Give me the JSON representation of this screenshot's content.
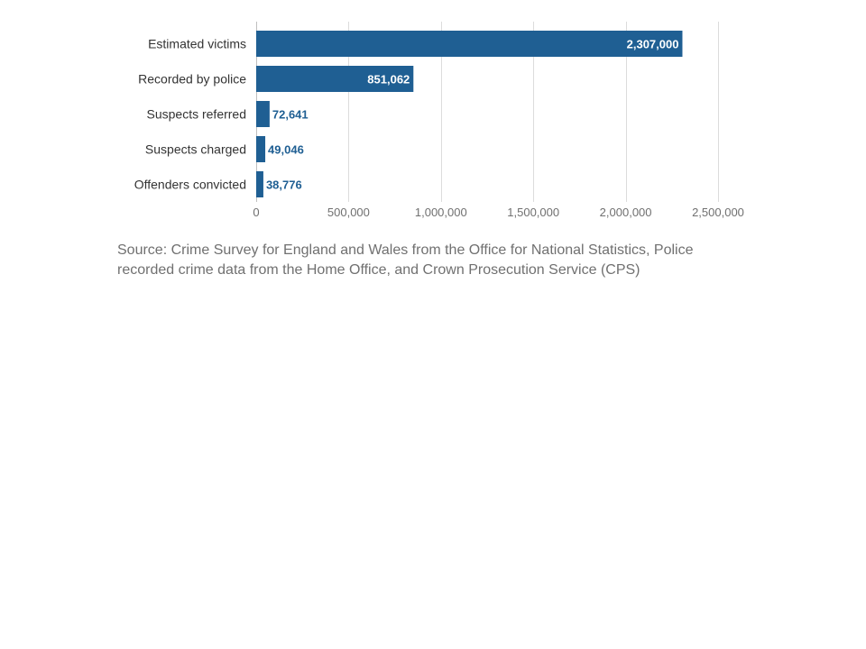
{
  "chart_data": {
    "type": "bar",
    "orientation": "horizontal",
    "categories": [
      "Estimated victims",
      "Recorded by police",
      "Suspects referred",
      "Suspects charged",
      "Offenders convicted"
    ],
    "values": [
      2307000,
      851062,
      72641,
      49046,
      38776
    ],
    "value_labels": [
      "2,307,000",
      "851,062",
      "72,641",
      "49,046",
      "38,776"
    ],
    "xlim": [
      0,
      2500000
    ],
    "x_ticks": [
      0,
      500000,
      1000000,
      1500000,
      2000000,
      2500000
    ],
    "x_tick_labels": [
      "0",
      "500,000",
      "1,000,000",
      "1,500,000",
      "2,000,000",
      "2,500,000"
    ],
    "grid": true,
    "colors": {
      "bar": "#1f5f93",
      "label_inside": "#ffffff",
      "label_outside": "#1f5f93"
    }
  },
  "source": "Source: Crime Survey for England and Wales from the Office for National Statistics, Police recorded crime data from the Home Office, and Crown Prosecution Service (CPS)"
}
